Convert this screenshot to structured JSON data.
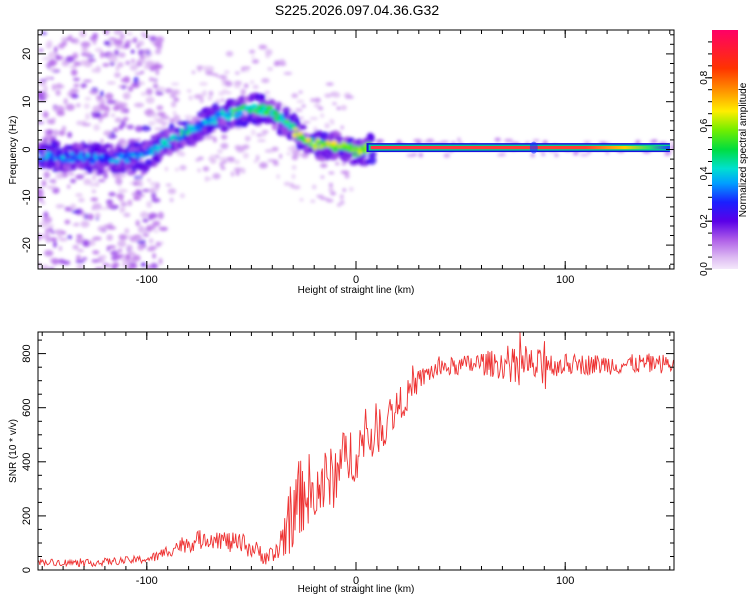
{
  "figure": {
    "title": "S225.2026.097.04.36.G32"
  },
  "chart_data": [
    {
      "type": "heatmap",
      "xlabel": "Height of straight line (km)",
      "ylabel": "Frequency (Hz)",
      "xlim": [
        -152,
        152
      ],
      "ylim": [
        -25,
        25
      ],
      "xticks": [
        -100,
        0,
        100
      ],
      "yticks": [
        -20,
        -10,
        0,
        10,
        20
      ],
      "colorbar": {
        "label": "Normalized spectral amplitude",
        "range": [
          0,
          1
        ],
        "ticks": [
          0.0,
          0.2,
          0.4,
          0.6,
          0.8
        ]
      },
      "ridge_frequency_hz": [
        [
          -152,
          -1.4
        ],
        [
          -140,
          -1.6
        ],
        [
          -130,
          -1.8
        ],
        [
          -120,
          -2.0
        ],
        [
          -110,
          -1.6
        ],
        [
          -100,
          -1.0
        ],
        [
          -90,
          1.5
        ],
        [
          -80,
          4.0
        ],
        [
          -70,
          6.0
        ],
        [
          -60,
          7.5
        ],
        [
          -50,
          8.5
        ],
        [
          -42,
          8.5
        ],
        [
          -35,
          6.0
        ],
        [
          -30,
          4.0
        ],
        [
          -25,
          2.0
        ],
        [
          -20,
          1.3
        ],
        [
          -15,
          0.8
        ],
        [
          -10,
          0.6
        ],
        [
          -5,
          0.2
        ],
        [
          0,
          -0.5
        ],
        [
          5,
          0.0
        ],
        [
          10,
          0.4
        ],
        [
          150,
          0.4
        ]
      ]
    },
    {
      "type": "line",
      "xlabel": "Height of straight line (km)",
      "ylabel": "SNR (10 * v/v)",
      "xlim": [
        -152,
        152
      ],
      "ylim": [
        0,
        880
      ],
      "xticks": [
        -100,
        0,
        100
      ],
      "yticks": [
        0,
        200,
        400,
        600,
        800
      ],
      "color": "#ee3333",
      "series": [
        {
          "trend": [
            [
              -152,
              30
            ],
            [
              -140,
              28
            ],
            [
              -130,
              25
            ],
            [
              -120,
              30
            ],
            [
              -110,
              35
            ],
            [
              -100,
              40
            ],
            [
              -95,
              50
            ],
            [
              -90,
              70
            ],
            [
              -85,
              90
            ],
            [
              -80,
              100
            ],
            [
              -75,
              110
            ],
            [
              -70,
              120
            ],
            [
              -65,
              115
            ],
            [
              -60,
              100
            ],
            [
              -55,
              95
            ],
            [
              -50,
              80
            ],
            [
              -45,
              60
            ],
            [
              -40,
              40
            ],
            [
              -36,
              100
            ],
            [
              -32,
              180
            ],
            [
              -28,
              250
            ],
            [
              -24,
              300
            ],
            [
              -20,
              280
            ],
            [
              -16,
              320
            ],
            [
              -12,
              330
            ],
            [
              -8,
              380
            ],
            [
              -4,
              420
            ],
            [
              0,
              440
            ],
            [
              5,
              480
            ],
            [
              10,
              520
            ],
            [
              15,
              560
            ],
            [
              20,
              600
            ],
            [
              25,
              650
            ],
            [
              30,
              700
            ],
            [
              35,
              730
            ],
            [
              40,
              745
            ],
            [
              50,
              755
            ],
            [
              60,
              765
            ],
            [
              70,
              760
            ],
            [
              80,
              760
            ],
            [
              85,
              750
            ],
            [
              90,
              760
            ],
            [
              100,
              760
            ],
            [
              110,
              760
            ],
            [
              120,
              760
            ],
            [
              130,
              760
            ],
            [
              140,
              765
            ],
            [
              152,
              760
            ]
          ],
          "noise": [
            [
              -152,
              12
            ],
            [
              -100,
              15
            ],
            [
              -80,
              35
            ],
            [
              -60,
              40
            ],
            [
              -42,
              35
            ],
            [
              -36,
              70
            ],
            [
              -30,
              150
            ],
            [
              -20,
              140
            ],
            [
              -10,
              120
            ],
            [
              0,
              110
            ],
            [
              10,
              100
            ],
            [
              20,
              70
            ],
            [
              30,
              40
            ],
            [
              50,
              35
            ],
            [
              85,
              70
            ],
            [
              95,
              40
            ],
            [
              152,
              35
            ]
          ]
        }
      ]
    }
  ]
}
